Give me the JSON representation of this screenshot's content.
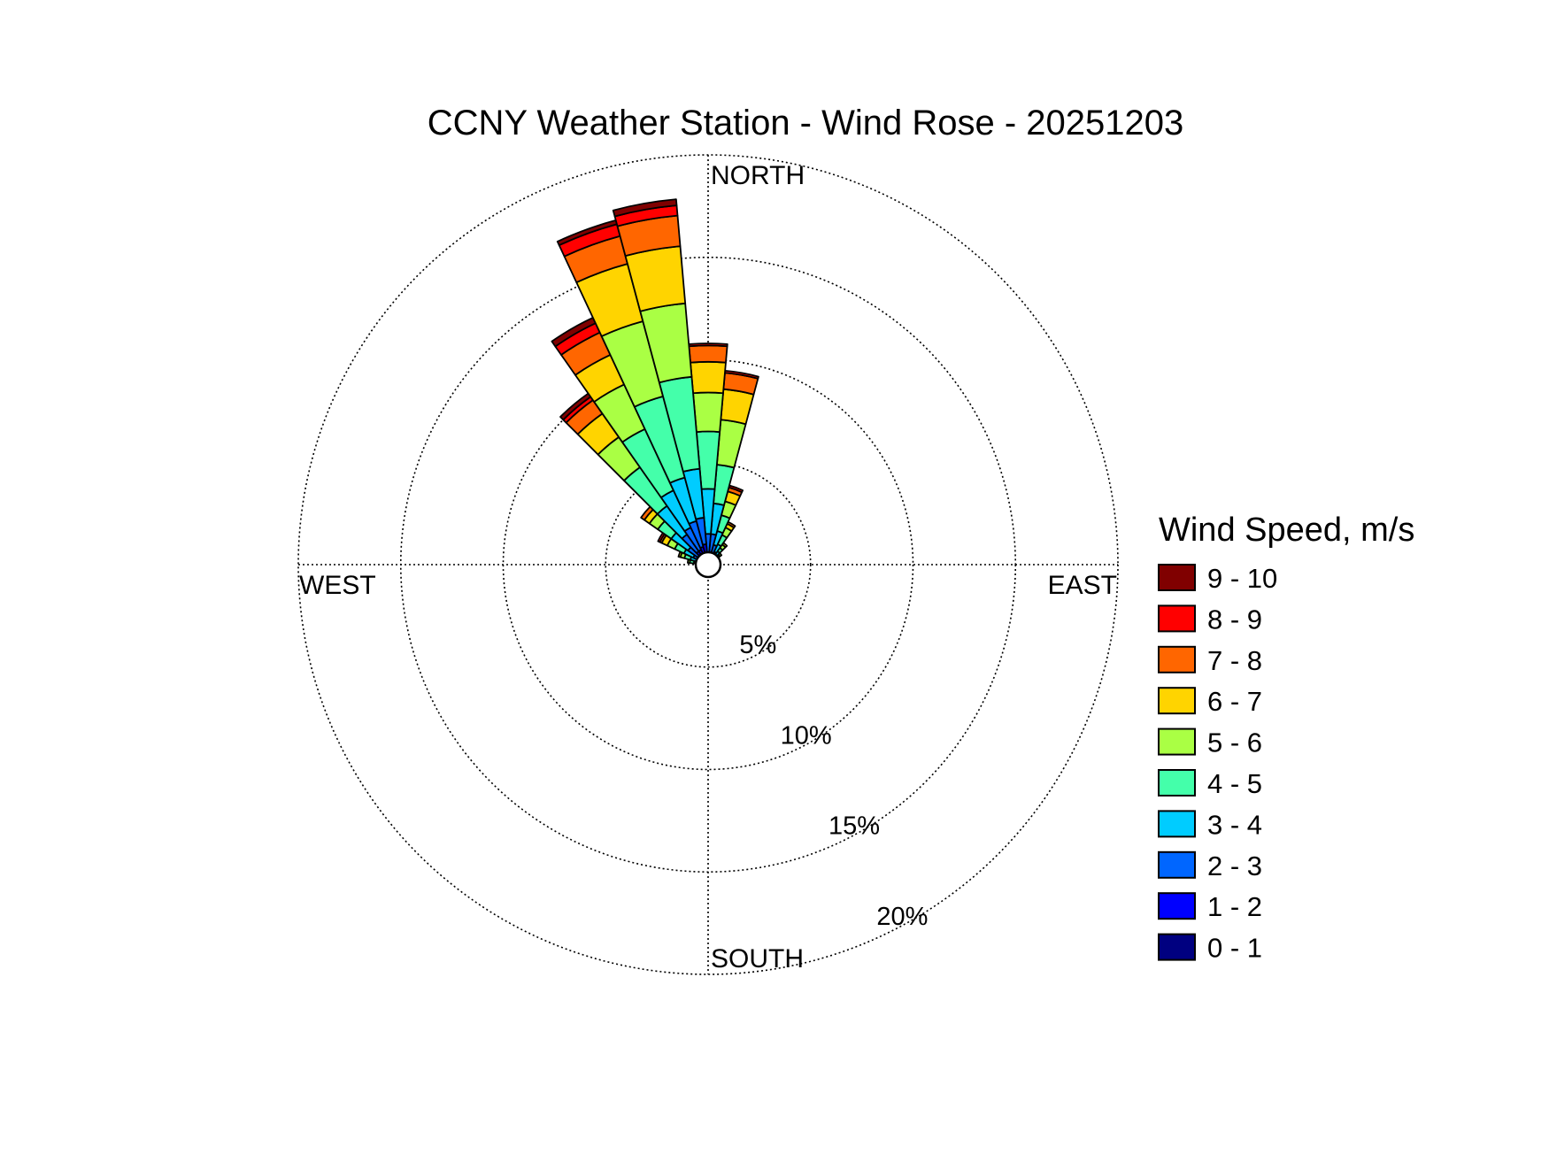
{
  "chart_data": {
    "type": "windrose",
    "title": "CCNY Weather Station - Wind Rose - 20251203",
    "direction_labels": {
      "north": "NORTH",
      "south": "SOUTH",
      "east": "EAST",
      "west": "WEST"
    },
    "radial_ticks": [
      5,
      10,
      15,
      20
    ],
    "radial_tick_labels": [
      "5%",
      "10%",
      "15%",
      "20%"
    ],
    "radial_max": 20,
    "radial_unit": "%",
    "legend_title": "Wind Speed, m/s",
    "legend_placement": "right",
    "sector_width_deg": 10,
    "speed_bins": [
      {
        "label": "0 - 1",
        "color": "#000080"
      },
      {
        "label": "1 - 2",
        "color": "#0000FF"
      },
      {
        "label": "2 - 3",
        "color": "#0066FF"
      },
      {
        "label": "3 - 4",
        "color": "#00CCFF"
      },
      {
        "label": "4 - 5",
        "color": "#44FFAA"
      },
      {
        "label": "5 - 6",
        "color": "#AAFF44"
      },
      {
        "label": "6 - 7",
        "color": "#FFD400"
      },
      {
        "label": "7 - 8",
        "color": "#FF6600"
      },
      {
        "label": "8 - 9",
        "color": "#FF0000"
      },
      {
        "label": "9 - 10",
        "color": "#800000"
      }
    ],
    "sectors": [
      {
        "direction_deg": 350,
        "cumulative": [
          0.3,
          1.0,
          2.3,
          4.7,
          9.2,
          12.8,
          15.6,
          17.1,
          17.6,
          17.9
        ]
      },
      {
        "direction_deg": 340,
        "cumulative": [
          0.3,
          0.9,
          2.2,
          4.4,
          8.5,
          12.3,
          15.2,
          16.6,
          17.2,
          17.4
        ]
      },
      {
        "direction_deg": 330,
        "cumulative": [
          0.3,
          0.8,
          2.0,
          4.0,
          7.3,
          9.7,
          11.3,
          12.5,
          13.0,
          13.3
        ]
      },
      {
        "direction_deg": 0,
        "cumulative": [
          0.2,
          0.6,
          1.5,
          3.7,
          6.5,
          8.4,
          9.9,
          10.7,
          10.8,
          10.8
        ]
      },
      {
        "direction_deg": 320,
        "cumulative": [
          0.3,
          0.8,
          1.8,
          3.5,
          5.8,
          7.6,
          9.0,
          9.8,
          10.0,
          10.2
        ]
      },
      {
        "direction_deg": 10,
        "cumulative": [
          0.2,
          0.6,
          1.5,
          3.0,
          4.9,
          7.1,
          8.6,
          9.4,
          9.5,
          9.5
        ]
      },
      {
        "direction_deg": 310,
        "cumulative": [
          0.2,
          0.6,
          1.2,
          2.2,
          3.0,
          3.5,
          3.8,
          4.0,
          4.0,
          4.0
        ]
      },
      {
        "direction_deg": 20,
        "cumulative": [
          0.2,
          0.5,
          1.0,
          1.7,
          2.5,
          3.2,
          3.7,
          3.9,
          4.0,
          4.0
        ]
      },
      {
        "direction_deg": 300,
        "cumulative": [
          0.2,
          0.4,
          0.8,
          1.3,
          1.8,
          2.2,
          2.5,
          2.6,
          2.7,
          2.7
        ]
      },
      {
        "direction_deg": 30,
        "cumulative": [
          0.2,
          0.4,
          0.7,
          1.1,
          1.6,
          2.0,
          2.2,
          2.3,
          2.3,
          2.3
        ]
      },
      {
        "direction_deg": 290,
        "cumulative": [
          0.2,
          0.4,
          0.6,
          0.9,
          1.2,
          1.4,
          1.5,
          1.5,
          1.5,
          1.5
        ]
      },
      {
        "direction_deg": 40,
        "cumulative": [
          0.2,
          0.3,
          0.5,
          0.8,
          1.0,
          1.2,
          1.3,
          1.3,
          1.3,
          1.3
        ]
      },
      {
        "direction_deg": 280,
        "cumulative": [
          0.2,
          0.3,
          0.5,
          0.7,
          0.9,
          1.0,
          1.0,
          1.0,
          1.0,
          1.0
        ]
      },
      {
        "direction_deg": 50,
        "cumulative": [
          0.1,
          0.3,
          0.4,
          0.6,
          0.7,
          0.8,
          0.8,
          0.8,
          0.8,
          0.8
        ]
      },
      {
        "direction_deg": 270,
        "cumulative": [
          0.1,
          0.2,
          0.4,
          0.5,
          0.6,
          0.6,
          0.6,
          0.6,
          0.6,
          0.6
        ]
      },
      {
        "direction_deg": 60,
        "cumulative": [
          0.1,
          0.2,
          0.3,
          0.4,
          0.5,
          0.5,
          0.5,
          0.5,
          0.5,
          0.5
        ]
      },
      {
        "direction_deg": 260,
        "cumulative": [
          0.1,
          0.2,
          0.3,
          0.4,
          0.4,
          0.4,
          0.4,
          0.4,
          0.4,
          0.4
        ]
      },
      {
        "direction_deg": 70,
        "cumulative": [
          0.1,
          0.2,
          0.3,
          0.3,
          0.3,
          0.3,
          0.3,
          0.3,
          0.3,
          0.3
        ]
      },
      {
        "direction_deg": 250,
        "cumulative": [
          0.1,
          0.2,
          0.2,
          0.3,
          0.3,
          0.3,
          0.3,
          0.3,
          0.3,
          0.3
        ]
      },
      {
        "direction_deg": 80,
        "cumulative": [
          0.1,
          0.15,
          0.2,
          0.25,
          0.25,
          0.25,
          0.25,
          0.25,
          0.25,
          0.25
        ]
      },
      {
        "direction_deg": 240,
        "cumulative": [
          0.1,
          0.15,
          0.2,
          0.2,
          0.2,
          0.2,
          0.2,
          0.2,
          0.2,
          0.2
        ]
      },
      {
        "direction_deg": 90,
        "cumulative": [
          0.1,
          0.15,
          0.2,
          0.2,
          0.2,
          0.2,
          0.2,
          0.2,
          0.2,
          0.2
        ]
      }
    ]
  }
}
